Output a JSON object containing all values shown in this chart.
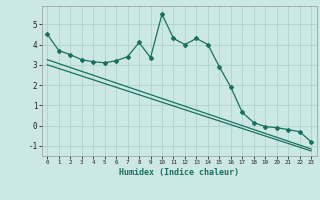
{
  "xlabel": "Humidex (Indice chaleur)",
  "background_color": "#cce8e4",
  "grid_color": "#aed4cf",
  "line_color": "#1a7060",
  "xmin": -0.5,
  "xmax": 23.5,
  "ymin": -1.5,
  "ymax": 5.9,
  "yticks": [
    -1,
    0,
    1,
    2,
    3,
    4,
    5
  ],
  "xticks": [
    0,
    1,
    2,
    3,
    4,
    5,
    6,
    7,
    8,
    9,
    10,
    11,
    12,
    13,
    14,
    15,
    16,
    17,
    18,
    19,
    20,
    21,
    22,
    23
  ],
  "line1_x": [
    0,
    1,
    2,
    3,
    4,
    5,
    6,
    7,
    8,
    9,
    10,
    11,
    12,
    13,
    14,
    15,
    16,
    17,
    18,
    19,
    20,
    21,
    22,
    23
  ],
  "line1_y": [
    4.5,
    3.7,
    3.5,
    3.25,
    3.15,
    3.1,
    3.2,
    3.4,
    4.1,
    3.35,
    5.5,
    4.3,
    4.0,
    4.3,
    4.0,
    2.9,
    1.9,
    0.65,
    0.15,
    -0.05,
    -0.1,
    -0.2,
    -0.3,
    -0.8
  ],
  "line2_x": [
    0,
    23
  ],
  "line2_y": [
    3.25,
    -1.15
  ],
  "line3_x": [
    0,
    23
  ],
  "line3_y": [
    3.0,
    -1.25
  ]
}
